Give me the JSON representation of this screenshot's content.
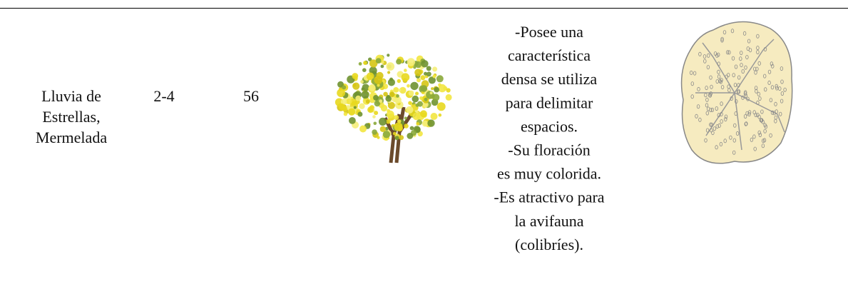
{
  "table": {
    "rows": [
      [
        [
          "Lluvia de",
          "Estrellas,",
          "Mermelada"
        ],
        "2-4",
        "56",
        [
          "-Posee una",
          "característica",
          "densa se utiliza",
          "para delimitar",
          "espacios.",
          "-Su floración",
          "es muy colorida.",
          "-Es atractivo para",
          "la avifauna",
          "(colibríes)."
        ]
      ]
    ]
  }
}
